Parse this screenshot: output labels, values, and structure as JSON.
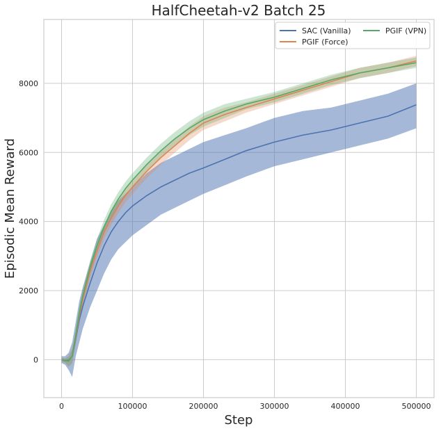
{
  "chart_data": {
    "type": "line",
    "title": "HalfCheetah-v2 Batch 25",
    "xlabel": "Step",
    "ylabel": "Episodic Mean Reward",
    "xlim": [
      -25000,
      525000
    ],
    "ylim": [
      -1100,
      9850
    ],
    "xticks": [
      0,
      100000,
      200000,
      300000,
      400000,
      500000
    ],
    "yticks": [
      0,
      2000,
      4000,
      6000,
      8000
    ],
    "grid": true,
    "legend": {
      "placement": "top-right",
      "columns": 2
    },
    "x": [
      0,
      5000,
      10000,
      15000,
      20000,
      25000,
      30000,
      40000,
      50000,
      60000,
      70000,
      80000,
      90000,
      100000,
      120000,
      140000,
      160000,
      180000,
      200000,
      230000,
      260000,
      300000,
      340000,
      380000,
      420000,
      460000,
      500000
    ],
    "series": [
      {
        "name": "SAC (Vanilla)",
        "color": "#4c72b0",
        "values": [
          0,
          -30,
          -20,
          100,
          600,
          1150,
          1550,
          2200,
          2800,
          3300,
          3700,
          4000,
          4250,
          4450,
          4750,
          5000,
          5200,
          5400,
          5550,
          5800,
          6050,
          6300,
          6500,
          6650,
          6850,
          7050,
          7380
        ],
        "lower": [
          -100,
          -150,
          -300,
          -500,
          100,
          500,
          900,
          1500,
          2000,
          2500,
          2900,
          3200,
          3400,
          3600,
          3900,
          4200,
          4400,
          4600,
          4800,
          5050,
          5300,
          5600,
          5800,
          6000,
          6200,
          6400,
          6700
        ],
        "upper": [
          100,
          100,
          200,
          500,
          1100,
          1700,
          2100,
          2800,
          3500,
          3900,
          4300,
          4600,
          4800,
          5000,
          5400,
          5700,
          5900,
          6100,
          6300,
          6500,
          6700,
          7000,
          7200,
          7300,
          7500,
          7700,
          8000
        ]
      },
      {
        "name": "PGIF (Force)",
        "color": "#dd8452",
        "values": [
          0,
          -30,
          -40,
          100,
          650,
          1250,
          1750,
          2550,
          3150,
          3700,
          4100,
          4450,
          4750,
          5000,
          5450,
          5850,
          6200,
          6550,
          6850,
          7100,
          7300,
          7550,
          7800,
          8050,
          8300,
          8450,
          8650
        ],
        "lower": [
          -60,
          -90,
          -200,
          -100,
          450,
          1050,
          1550,
          2350,
          2950,
          3500,
          3900,
          4250,
          4550,
          4800,
          5250,
          5650,
          6000,
          6350,
          6650,
          6900,
          7150,
          7400,
          7650,
          7900,
          8150,
          8300,
          8500
        ],
        "upper": [
          60,
          30,
          100,
          300,
          850,
          1450,
          1950,
          2750,
          3350,
          3900,
          4300,
          4650,
          4950,
          5200,
          5650,
          6050,
          6400,
          6750,
          7050,
          7300,
          7450,
          7700,
          7950,
          8200,
          8450,
          8600,
          8800
        ]
      },
      {
        "name": "PGIF (VPN)",
        "color": "#55a868",
        "values": [
          0,
          -30,
          -40,
          100,
          700,
          1350,
          1850,
          2650,
          3300,
          3850,
          4300,
          4650,
          4950,
          5200,
          5650,
          6050,
          6400,
          6700,
          6950,
          7200,
          7400,
          7600,
          7850,
          8100,
          8300,
          8450,
          8600
        ],
        "lower": [
          -60,
          -90,
          -200,
          -100,
          500,
          1150,
          1650,
          2450,
          3100,
          3650,
          4100,
          4450,
          4750,
          5000,
          5450,
          5850,
          6200,
          6500,
          6750,
          7000,
          7250,
          7450,
          7700,
          7950,
          8150,
          8300,
          8450
        ],
        "upper": [
          60,
          30,
          100,
          300,
          900,
          1550,
          2050,
          2850,
          3500,
          4050,
          4500,
          4850,
          5150,
          5400,
          5850,
          6250,
          6600,
          6900,
          7150,
          7400,
          7550,
          7750,
          8000,
          8250,
          8450,
          8600,
          8750
        ]
      }
    ]
  }
}
